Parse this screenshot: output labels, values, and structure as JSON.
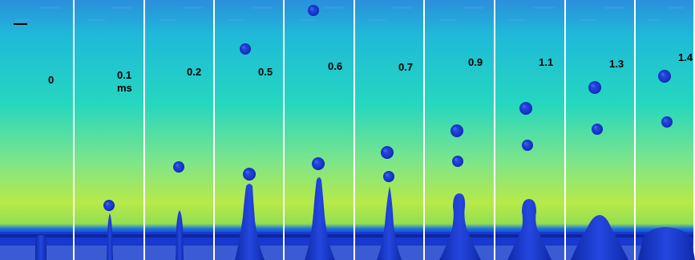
{
  "figure": {
    "panels": [
      {
        "time_label": "0",
        "unit_label": ""
      },
      {
        "time_label": "0.1",
        "unit_label": "ms"
      },
      {
        "time_label": "0.2",
        "unit_label": ""
      },
      {
        "time_label": "0.5",
        "unit_label": ""
      },
      {
        "time_label": "0.6",
        "unit_label": ""
      },
      {
        "time_label": "0.7",
        "unit_label": ""
      },
      {
        "time_label": "0.9",
        "unit_label": ""
      },
      {
        "time_label": "1.1",
        "unit_label": ""
      },
      {
        "time_label": "1.3",
        "unit_label": ""
      },
      {
        "time_label": "1.4",
        "unit_label": ""
      }
    ],
    "colors": {
      "background_top": "#1f9ad8",
      "background_mid": "#2bd6b8",
      "background_low": "#b6ea46",
      "liquid": "#1a3cd6",
      "liquid_dark": "#0b1f9a",
      "label_text": "#000000"
    }
  }
}
